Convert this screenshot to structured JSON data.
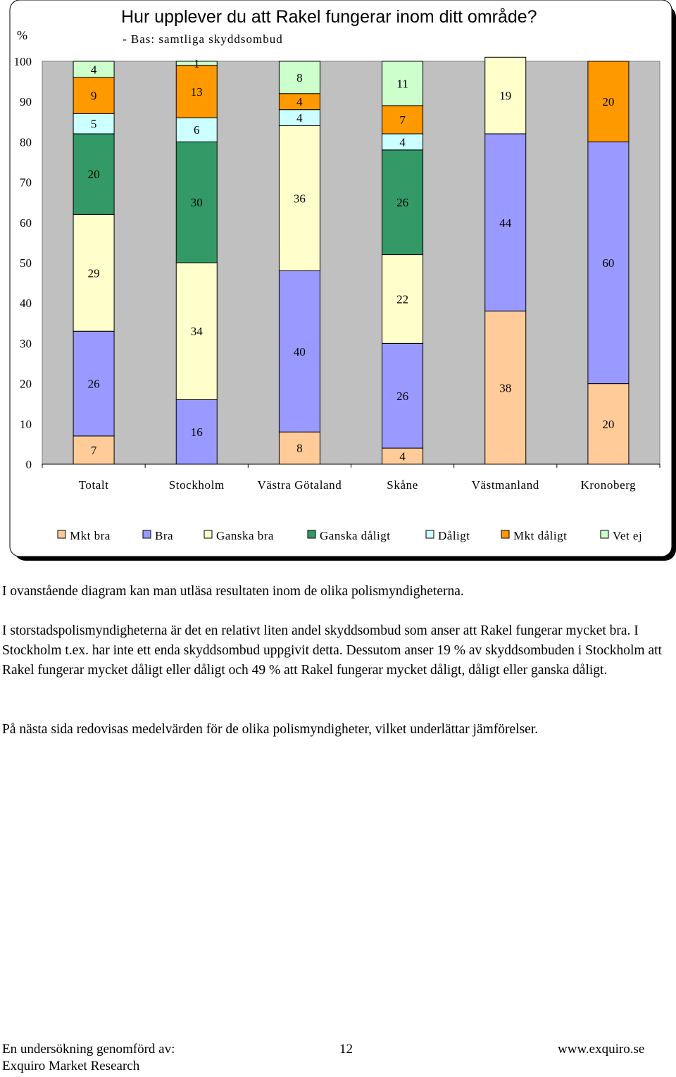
{
  "chart_data": {
    "type": "bar",
    "stacked": true,
    "title": "Hur upplever du att Rakel fungerar inom ditt område?",
    "subtitle": "- Bas: samtliga skyddsombud",
    "ylabel": "%",
    "xlabel": "",
    "ylim": [
      0,
      100
    ],
    "yticks": [
      "0",
      "10",
      "20",
      "30",
      "40",
      "50",
      "60",
      "70",
      "80",
      "90",
      "100"
    ],
    "grid": false,
    "legend_position": "bottom",
    "categories": [
      "Totalt",
      "Stockholm",
      "Västra Götaland",
      "Skåne",
      "Västmanland",
      "Kronoberg"
    ],
    "series": [
      {
        "name": "Mkt bra",
        "color": "#FFCC99",
        "values": [
          7,
          0,
          8,
          4,
          38,
          20
        ]
      },
      {
        "name": "Bra",
        "color": "#9999FF",
        "values": [
          26,
          16,
          40,
          26,
          44,
          60
        ]
      },
      {
        "name": "Ganska bra",
        "color": "#FFFFCC",
        "values": [
          29,
          34,
          36,
          22,
          19,
          0
        ]
      },
      {
        "name": "Ganska dåligt",
        "color": "#339966",
        "values": [
          20,
          30,
          0,
          26,
          0,
          0
        ]
      },
      {
        "name": "Dåligt",
        "color": "#CCFFFF",
        "values": [
          5,
          6,
          4,
          4,
          0,
          0
        ]
      },
      {
        "name": "Mkt dåligt",
        "color": "#FF9900",
        "values": [
          9,
          13,
          4,
          7,
          0,
          20
        ]
      },
      {
        "name": "Vet ej",
        "color": "#CCFFCC",
        "values": [
          4,
          1,
          8,
          11,
          0,
          0
        ]
      }
    ]
  },
  "text": {
    "p1": "I ovanstående diagram kan man utläsa resultaten inom de olika polismyndigheterna.",
    "p2": "I storstadspolismyndigheterna är det en relativt liten andel skyddsombud som anser att Rakel fungerar mycket bra. I Stockholm t.ex. har inte ett enda skyddsombud uppgivit detta. Dessutom anser 19 % av skyddsombuden i Stockholm att Rakel fungerar mycket dåligt eller dåligt och 49 % att Rakel fungerar mycket dåligt, dåligt eller ganska dåligt.",
    "p3": "På nästa sida redovisas medelvärden för de olika polismyndigheter, vilket underlättar jämförelser."
  },
  "footer": {
    "left_line1": "En undersökning genomförd av:",
    "left_line2": "Exquiro Market Research",
    "page_number": "12",
    "website": "www.exquiro.se"
  },
  "colors": {
    "plot_background": "#C0C0C0",
    "axis": "#000000"
  }
}
